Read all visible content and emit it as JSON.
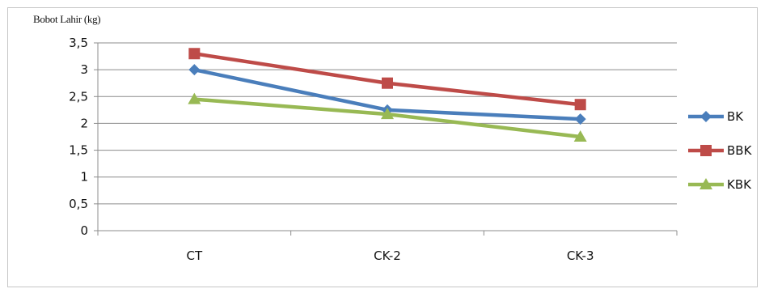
{
  "chart_data": {
    "type": "line",
    "ylabel": "Bobot Lahir (kg)",
    "xlabel": "",
    "categories": [
      "CT",
      "CK-2",
      "CK-3"
    ],
    "ylim": [
      0,
      3.5
    ],
    "yticks": [
      "0",
      "0,5",
      "1",
      "1,5",
      "2",
      "2,5",
      "3",
      "3,5"
    ],
    "grid": true,
    "legend_position": "right",
    "series": [
      {
        "name": "BK",
        "values": [
          3.0,
          2.25,
          2.08
        ],
        "color": "#4a7ebb",
        "marker": "diamond"
      },
      {
        "name": "BBK",
        "values": [
          3.3,
          2.75,
          2.35
        ],
        "color": "#be4b48",
        "marker": "square"
      },
      {
        "name": "KBK",
        "values": [
          2.45,
          2.17,
          1.75
        ],
        "color": "#98b954",
        "marker": "triangle"
      }
    ]
  }
}
